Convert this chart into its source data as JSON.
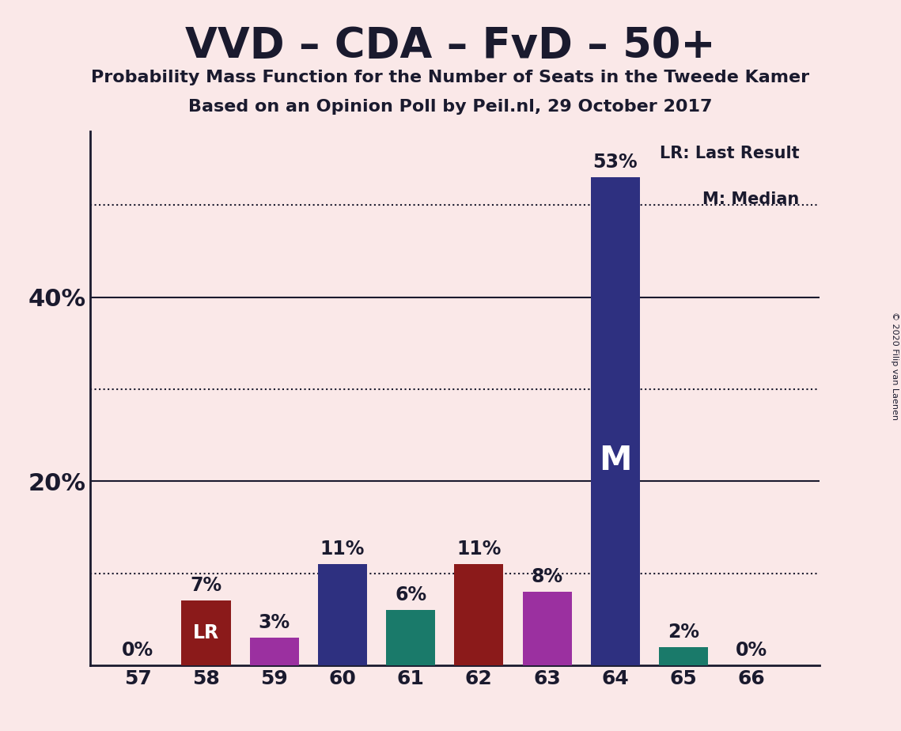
{
  "title": "VVD – CDA – FvD – 50+",
  "subtitle1": "Probability Mass Function for the Number of Seats in the Tweede Kamer",
  "subtitle2": "Based on an Opinion Poll by Peil.nl, 29 October 2017",
  "copyright": "© 2020 Filip van Laenen",
  "categories": [
    57,
    58,
    59,
    60,
    61,
    62,
    63,
    64,
    65,
    66
  ],
  "values": [
    0,
    7,
    3,
    11,
    6,
    11,
    8,
    53,
    2,
    0
  ],
  "bar_colors": [
    "#2e3080",
    "#8b1a1a",
    "#9b30a0",
    "#2e3080",
    "#1a7a6a",
    "#8b1a1a",
    "#9b30a0",
    "#2e3080",
    "#1a7a6a",
    "#2e3080"
  ],
  "lr_bar": 58,
  "median_bar": 64,
  "background_color": "#fae8e8",
  "text_color": "#1a1a2e",
  "ylim": [
    0,
    58
  ],
  "solid_gridlines": [
    20,
    40
  ],
  "dotted_gridlines": [
    10,
    30,
    50
  ],
  "ytick_positions": [
    20,
    40
  ],
  "ytick_labels": [
    "20%",
    "40%"
  ],
  "legend_lr": "LR: Last Result",
  "legend_m": "M: Median"
}
